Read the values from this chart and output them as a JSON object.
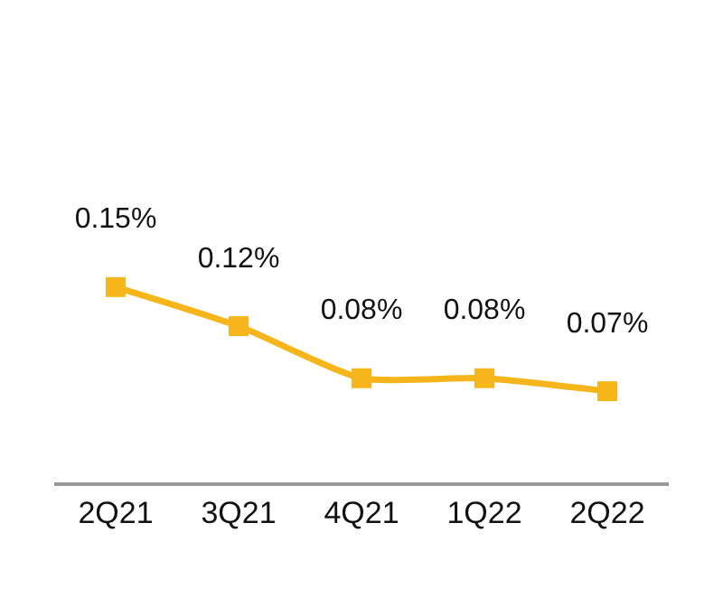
{
  "chart_data": {
    "type": "line",
    "categories": [
      "2Q21",
      "3Q21",
      "4Q21",
      "1Q22",
      "2Q22"
    ],
    "series": [
      {
        "color": "#f7b51c",
        "values": [
          0.15,
          0.12,
          0.08,
          0.08,
          0.07
        ],
        "value_labels": [
          "0.15%",
          "0.12%",
          "0.08%",
          "0.08%",
          "0.07%"
        ]
      }
    ],
    "marker": "square",
    "line_style": "solid",
    "grid": false,
    "legend": false
  }
}
